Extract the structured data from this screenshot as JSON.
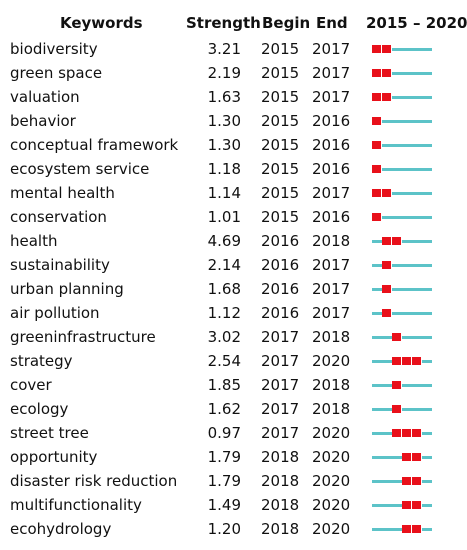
{
  "chart_data": {
    "type": "table",
    "columns": [
      "Keywords",
      "Strength",
      "Begin",
      "End",
      "2015 – 2020"
    ],
    "range": [
      2015,
      2020
    ],
    "colors": {
      "burst": "#e8101a",
      "base": "#5cc3c8"
    },
    "rows": [
      {
        "keyword": "biodiversity",
        "strength": "3.21",
        "begin": "2015",
        "end": "2017"
      },
      {
        "keyword": "green space",
        "strength": "2.19",
        "begin": "2015",
        "end": "2017"
      },
      {
        "keyword": "valuation",
        "strength": "1.63",
        "begin": "2015",
        "end": "2017"
      },
      {
        "keyword": "behavior",
        "strength": "1.30",
        "begin": "2015",
        "end": "2016"
      },
      {
        "keyword": "conceptual framework",
        "strength": "1.30",
        "begin": "2015",
        "end": "2016"
      },
      {
        "keyword": "ecosystem service",
        "strength": "1.18",
        "begin": "2015",
        "end": "2016"
      },
      {
        "keyword": "mental health",
        "strength": "1.14",
        "begin": "2015",
        "end": "2017"
      },
      {
        "keyword": "conservation",
        "strength": "1.01",
        "begin": "2015",
        "end": "2016"
      },
      {
        "keyword": "health",
        "strength": "4.69",
        "begin": "2016",
        "end": "2018"
      },
      {
        "keyword": "sustainability",
        "strength": "2.14",
        "begin": "2016",
        "end": "2017"
      },
      {
        "keyword": "urban planning",
        "strength": "1.68",
        "begin": "2016",
        "end": "2017"
      },
      {
        "keyword": "air pollution",
        "strength": "1.12",
        "begin": "2016",
        "end": "2017"
      },
      {
        "keyword": "greeninfrastructure",
        "strength": "3.02",
        "begin": "2017",
        "end": "2018"
      },
      {
        "keyword": "strategy",
        "strength": "2.54",
        "begin": "2017",
        "end": "2020"
      },
      {
        "keyword": "cover",
        "strength": "1.85",
        "begin": "2017",
        "end": "2018"
      },
      {
        "keyword": "ecology",
        "strength": "1.62",
        "begin": "2017",
        "end": "2018"
      },
      {
        "keyword": "street tree",
        "strength": "0.97",
        "begin": "2017",
        "end": "2020"
      },
      {
        "keyword": "opportunity",
        "strength": "1.79",
        "begin": "2018",
        "end": "2020"
      },
      {
        "keyword": "disaster risk reduction",
        "strength": "1.79",
        "begin": "2018",
        "end": "2020"
      },
      {
        "keyword": "multifunctionality",
        "strength": "1.49",
        "begin": "2018",
        "end": "2020"
      },
      {
        "keyword": "ecohydrology",
        "strength": "1.20",
        "begin": "2018",
        "end": "2020"
      }
    ]
  }
}
